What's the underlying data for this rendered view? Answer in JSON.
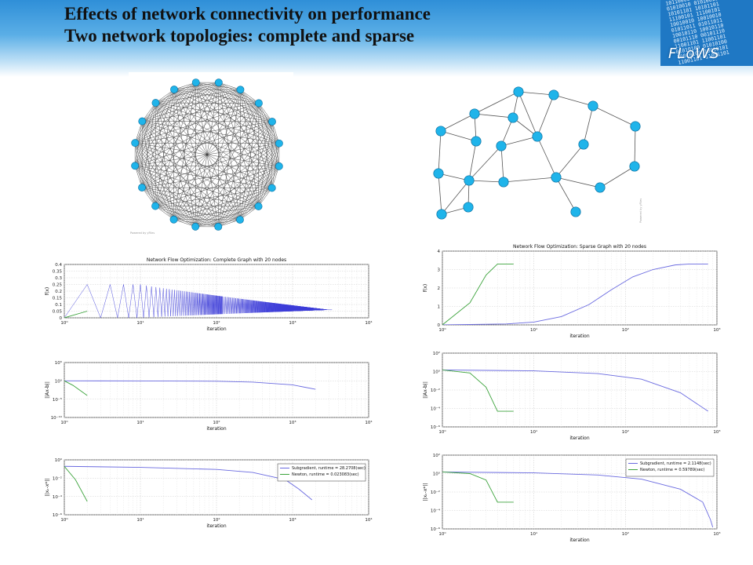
{
  "slide": {
    "title_line1": "Effects of network connectivity on performance",
    "title_line2": "Two network topologies: complete and sparse",
    "logo_text": "FLoWS",
    "logo_bits": [
      "10110000",
      "01010010",
      "10101101",
      "11100101",
      "10010010",
      "01011011",
      "10010110",
      "00101110",
      "11001101",
      "01010100",
      "10010101",
      "11001101"
    ],
    "graph_credit": "Powered by yFiles"
  },
  "chart_data": [
    {
      "id": "complete-fx",
      "type": "line",
      "title": "Network Flow Optimization: Complete Graph with 20 nodes",
      "xlabel": "iteration",
      "ylabel": "f(x)",
      "xscale": "log",
      "xlim": [
        1,
        10000
      ],
      "ylim": [
        0,
        0.4
      ],
      "xticks": [
        "10⁰",
        "10¹",
        "10²",
        "10³",
        "10⁴"
      ],
      "yticks": [
        "0",
        "0.05",
        "0.1",
        "0.15",
        "0.2",
        "0.25",
        "0.3",
        "0.35",
        "0.4"
      ],
      "grid": true,
      "series": [
        {
          "color": "#3b3bd8",
          "oscillating": {
            "from": 1,
            "until": 10,
            "low": 0.0,
            "high": 0.25,
            "period_iterations": 1,
            "decay_end": 3000,
            "final": 0.06
          }
        },
        {
          "color": "#3ca33c",
          "points": [
            [
              1,
              0.0
            ],
            [
              2,
              0.05
            ]
          ]
        }
      ]
    },
    {
      "id": "complete-residual",
      "type": "line",
      "xlabel": "iteration",
      "ylabel": "||Ax-b||",
      "xscale": "log",
      "yscale": "log",
      "xlim": [
        1,
        10000
      ],
      "ylim": [
        1e-10,
        100000.0
      ],
      "xticks": [
        "10⁰",
        "10¹",
        "10²",
        "10³",
        "10⁴"
      ],
      "yticks": [
        "10⁻¹⁰",
        "10⁻⁵",
        "10⁰",
        "10⁵"
      ],
      "grid": true,
      "series": [
        {
          "color": "#6a6ae0",
          "points": [
            [
              1,
              1
            ],
            [
              10,
              0.95
            ],
            [
              100,
              0.8
            ],
            [
              300,
              0.45
            ],
            [
              1000,
              0.08
            ],
            [
              2000,
              0.005
            ]
          ]
        },
        {
          "color": "#3ca33c",
          "points": [
            [
              1,
              1
            ],
            [
              1.3,
              0.06
            ],
            [
              2,
              0.0001
            ]
          ]
        }
      ]
    },
    {
      "id": "complete-error",
      "type": "line",
      "xlabel": "iteration",
      "ylabel": "||xₖ-x*||",
      "xscale": "log",
      "yscale": "log",
      "xlim": [
        1,
        10000
      ],
      "ylim": [
        1e-06,
        10
      ],
      "xticks": [
        "10⁰",
        "10¹",
        "10²",
        "10³",
        "10⁴"
      ],
      "yticks": [
        "10⁻⁶",
        "10⁻⁴",
        "10⁻²",
        "10⁰"
      ],
      "grid": true,
      "legend_position": "top-right",
      "series": [
        {
          "name": "Subgradient, runtime = 28.2708(sec)",
          "color": "#6a6ae0",
          "points": [
            [
              1,
              1.5
            ],
            [
              10,
              1.1
            ],
            [
              100,
              0.6
            ],
            [
              300,
              0.25
            ],
            [
              800,
              0.03
            ],
            [
              1200,
              0.002
            ],
            [
              1800,
              8e-05
            ]
          ]
        },
        {
          "name": "Newton, runtime = 0.023083(sec)",
          "color": "#3ca33c",
          "points": [
            [
              1,
              1.5
            ],
            [
              1.4,
              0.03
            ],
            [
              2,
              5e-05
            ]
          ]
        }
      ]
    },
    {
      "id": "sparse-fx",
      "type": "line",
      "title": "Network Flow Optimization: Sparse Graph with 20 nodes",
      "xlabel": "iteration",
      "ylabel": "f(x)",
      "xscale": "log",
      "xlim": [
        1,
        1000
      ],
      "ylim": [
        0,
        4
      ],
      "xticks": [
        "10⁰",
        "10¹",
        "10²",
        "10³"
      ],
      "yticks": [
        "0",
        "1",
        "2",
        "3",
        "4"
      ],
      "grid": true,
      "series": [
        {
          "color": "#6a6ae0",
          "points": [
            [
              1,
              0.0
            ],
            [
              5,
              0.05
            ],
            [
              10,
              0.15
            ],
            [
              20,
              0.45
            ],
            [
              40,
              1.1
            ],
            [
              70,
              1.9
            ],
            [
              120,
              2.6
            ],
            [
              200,
              3.0
            ],
            [
              350,
              3.25
            ],
            [
              500,
              3.3
            ],
            [
              800,
              3.3
            ]
          ]
        },
        {
          "color": "#3ca33c",
          "points": [
            [
              1,
              0.0
            ],
            [
              2,
              1.2
            ],
            [
              3,
              2.7
            ],
            [
              4,
              3.3
            ],
            [
              6,
              3.3
            ]
          ]
        }
      ]
    },
    {
      "id": "sparse-residual",
      "type": "line",
      "xlabel": "iteration",
      "ylabel": "||Ax-b||",
      "xscale": "log",
      "yscale": "log",
      "xlim": [
        1,
        1000
      ],
      "ylim": [
        1e-06,
        100
      ],
      "xticks": [
        "10⁰",
        "10¹",
        "10²",
        "10³"
      ],
      "yticks": [
        "10⁻⁶",
        "10⁻⁴",
        "10⁻²",
        "10⁰",
        "10²"
      ],
      "grid": true,
      "series": [
        {
          "color": "#6a6ae0",
          "points": [
            [
              1,
              1.5
            ],
            [
              10,
              1.2
            ],
            [
              50,
              0.6
            ],
            [
              150,
              0.15
            ],
            [
              400,
              0.005
            ],
            [
              800,
              5e-05
            ]
          ]
        },
        {
          "color": "#3ca33c",
          "points": [
            [
              1,
              1.5
            ],
            [
              2,
              0.7
            ],
            [
              3,
              0.02
            ],
            [
              4,
              5e-05
            ],
            [
              6,
              5e-05
            ]
          ]
        }
      ]
    },
    {
      "id": "sparse-error",
      "type": "line",
      "xlabel": "iteration",
      "ylabel": "||xₖ-x*||",
      "xscale": "log",
      "yscale": "log",
      "xlim": [
        1,
        1000
      ],
      "ylim": [
        1e-06,
        100
      ],
      "xticks": [
        "10⁰",
        "10¹",
        "10²",
        "10³"
      ],
      "yticks": [
        "10⁻⁶",
        "10⁻⁴",
        "10⁻²",
        "10⁰",
        "10²"
      ],
      "grid": true,
      "legend_position": "top-right",
      "series": [
        {
          "name": "Subgradient, runtime = 2.1148(sec)",
          "color": "#6a6ae0",
          "points": [
            [
              1,
              1.5
            ],
            [
              10,
              1.2
            ],
            [
              50,
              0.7
            ],
            [
              150,
              0.25
            ],
            [
              400,
              0.02
            ],
            [
              700,
              0.0008
            ],
            [
              850,
              1e-05
            ],
            [
              900,
              1.5e-06
            ]
          ]
        },
        {
          "name": "Newton, runtime = 0.59789(sec)",
          "color": "#3ca33c",
          "points": [
            [
              1,
              1.5
            ],
            [
              2,
              1.0
            ],
            [
              3,
              0.2
            ],
            [
              4,
              0.0008
            ],
            [
              6,
              0.0008
            ]
          ]
        }
      ]
    }
  ]
}
